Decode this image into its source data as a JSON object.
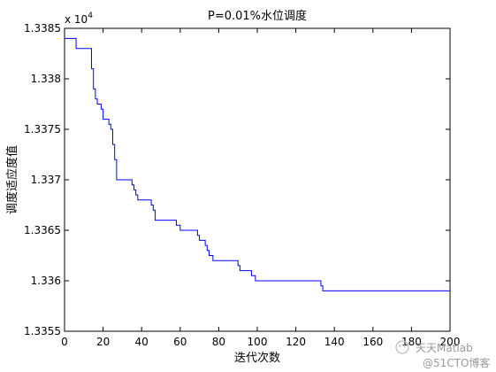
{
  "chart_data": {
    "type": "line",
    "title": "P=0.01%水位调度",
    "xlabel": "迭代次数",
    "ylabel": "调度适应度值",
    "exponent_label": "x 10",
    "exponent_power": "4",
    "xlim": [
      0,
      200
    ],
    "ylim": [
      13355,
      13385
    ],
    "xticks": [
      0,
      20,
      40,
      60,
      80,
      100,
      120,
      140,
      160,
      180,
      200
    ],
    "xtick_labels": [
      "0",
      "20",
      "40",
      "60",
      "80",
      "100",
      "120",
      "140",
      "160",
      "180",
      "200"
    ],
    "yticks": [
      13355,
      13360,
      13365,
      13370,
      13375,
      13380,
      13385
    ],
    "ytick_labels": [
      "1.3355",
      "1.336",
      "1.3365",
      "1.337",
      "1.3375",
      "1.338",
      "1.3385"
    ],
    "grid": false,
    "series": [
      {
        "color": "#0000ff",
        "x": [
          0,
          6,
          14,
          15,
          16,
          17,
          19,
          20,
          23,
          24,
          25,
          26,
          27,
          35,
          36,
          37,
          38,
          40,
          45,
          46,
          47,
          48,
          58,
          60,
          69,
          70,
          71,
          73,
          74,
          75,
          77,
          78,
          79,
          90,
          91,
          97,
          99,
          133,
          134,
          200
        ],
        "y": [
          13384,
          13383,
          13381,
          13379,
          13378,
          13377.5,
          13377,
          13376,
          13375.5,
          13375,
          13373.5,
          13372,
          13370,
          13369.5,
          13369,
          13368.5,
          13368,
          13368,
          13367.5,
          13367,
          13366,
          13366,
          13365.5,
          13365,
          13364.5,
          13364,
          13364,
          13363.5,
          13363,
          13362.5,
          13362,
          13362,
          13362,
          13361.5,
          13361,
          13360.5,
          13360,
          13359.5,
          13359,
          13359
        ]
      }
    ]
  },
  "watermark": {
    "line1": "天天Matlab",
    "line2": "@51CTO博客"
  }
}
